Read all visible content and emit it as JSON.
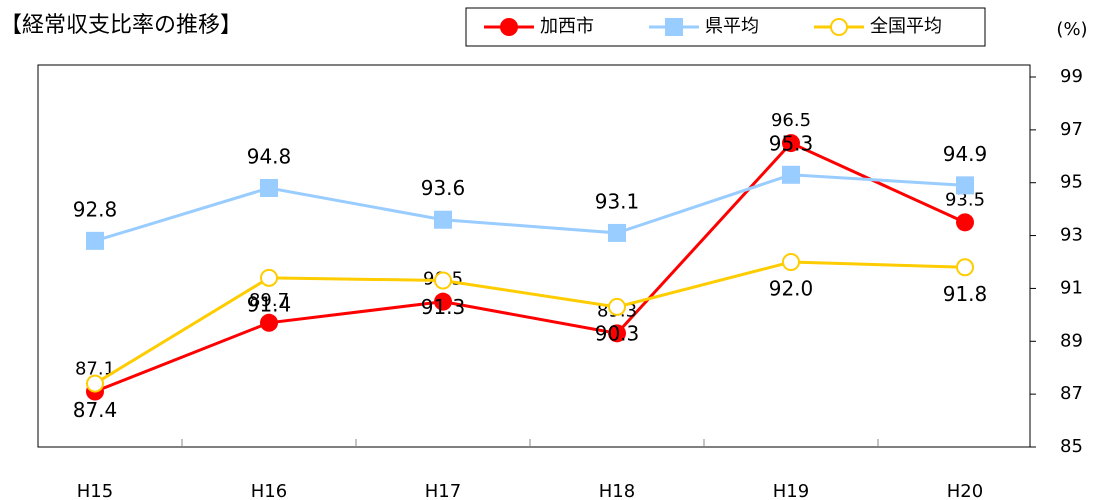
{
  "chart_data": {
    "type": "line",
    "title": "【経常収支比率の推移】",
    "y_label": "(%)",
    "categories": [
      "H15",
      "H16",
      "H17",
      "H18",
      "H19",
      "H20"
    ],
    "series": [
      {
        "name": "加西市",
        "color": "#ff0000",
        "marker": "circle",
        "values": [
          87.1,
          89.7,
          90.5,
          89.3,
          96.5,
          93.5
        ],
        "value_labels": [
          "87.1",
          "89.7",
          "90.5",
          "89.3",
          "96.5",
          "93.5"
        ]
      },
      {
        "name": "県平均",
        "color": "#99ccff",
        "marker": "square",
        "values": [
          92.8,
          94.8,
          93.6,
          93.1,
          95.3,
          94.9
        ],
        "value_labels": [
          "92.8",
          "94.8",
          "93.6",
          "93.1",
          "95.3",
          "94.9"
        ]
      },
      {
        "name": "全国平均",
        "color": "#ffcc00",
        "marker": "open-circle",
        "values": [
          87.4,
          91.4,
          91.3,
          90.3,
          92.0,
          91.8
        ],
        "value_labels": [
          "87.4",
          "91.4",
          "91.3",
          "90.3",
          "92.0",
          "91.8"
        ]
      }
    ],
    "ylim": [
      85,
      99
    ],
    "yticks": [
      85,
      87,
      89,
      91,
      93,
      95,
      97,
      99
    ],
    "y_axis_side": "right",
    "grid": false
  }
}
